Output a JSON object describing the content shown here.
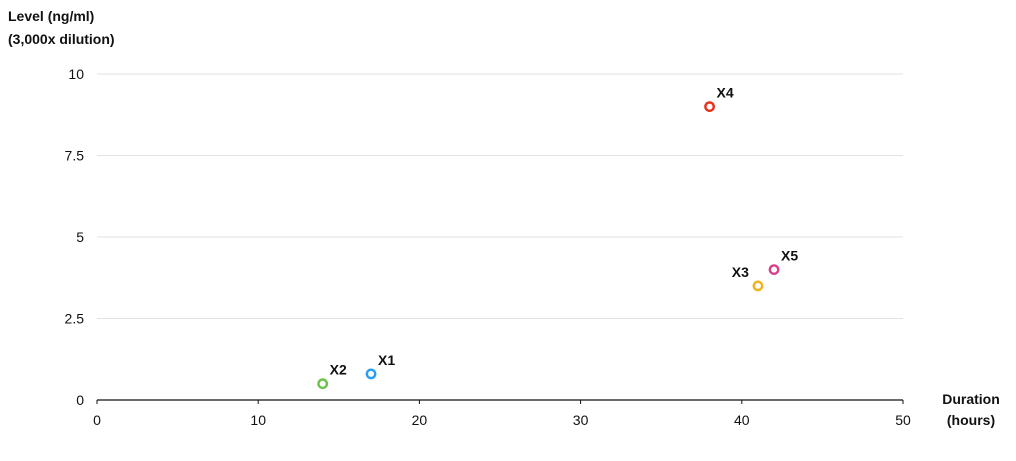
{
  "chart_data": {
    "type": "scatter",
    "ylabel_lines": [
      "Level (ng/ml)",
      "(3,000x dilution)"
    ],
    "xlabel_lines": [
      "Duration",
      "(hours)"
    ],
    "xlim": [
      0,
      50
    ],
    "ylim": [
      0,
      10
    ],
    "x_ticks": [
      0,
      10,
      20,
      30,
      40,
      50
    ],
    "y_ticks": [
      0,
      2.5,
      5,
      7.5,
      10
    ],
    "x_tick_labels": [
      "0",
      "10",
      "20",
      "30",
      "40",
      "50"
    ],
    "y_tick_labels": [
      "0",
      "2.5",
      "5",
      "7.5",
      "10"
    ],
    "grid": "horizontal",
    "points": [
      {
        "label": "X1",
        "x": 17,
        "y": 0.8,
        "color": "#2a9df4",
        "label_side": "right"
      },
      {
        "label": "X2",
        "x": 14,
        "y": 0.5,
        "color": "#6cc24a",
        "label_side": "right"
      },
      {
        "label": "X3",
        "x": 41,
        "y": 3.5,
        "color": "#f2b21c",
        "label_side": "left"
      },
      {
        "label": "X4",
        "x": 38,
        "y": 9,
        "color": "#e8301c",
        "label_side": "right"
      },
      {
        "label": "X5",
        "x": 42,
        "y": 4,
        "color": "#d9408e",
        "label_side": "right"
      }
    ]
  }
}
